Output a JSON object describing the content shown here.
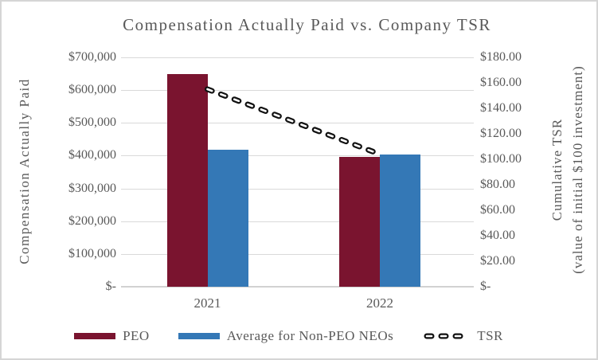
{
  "title": "Compensation Actually Paid vs. Company TSR",
  "colors": {
    "peo": "#7A142F",
    "non_peo": "#3478B6",
    "tsr": "#111111",
    "grid": "#D9D9D9",
    "axis_line": "#D2D2D2",
    "text": "#595959"
  },
  "chart_data": {
    "type": "bar",
    "subtype": "grouped-bars-with-secondary-axis-dashed-line",
    "title": "Compensation Actually Paid vs. Company TSR",
    "categories": [
      "2021",
      "2022"
    ],
    "series": [
      {
        "name": "PEO",
        "type": "bar",
        "axis": "left",
        "color_key": "peo",
        "values": [
          648000,
          395000
        ]
      },
      {
        "name": "Average for Non-PEO NEOs",
        "type": "bar",
        "axis": "left",
        "color_key": "non_peo",
        "values": [
          417000,
          404000
        ]
      },
      {
        "name": "TSR",
        "type": "dashed-line",
        "axis": "right",
        "color_key": "tsr",
        "values": [
          155,
          104
        ]
      }
    ],
    "left_axis": {
      "title": "Compensation Actually Paid",
      "range": [
        0,
        700000
      ],
      "tick_step": 100000,
      "tick_labels": [
        "$700,000",
        "$600,000",
        "$500,000",
        "$400,000",
        "$300,000",
        "$200,000",
        "$100,000",
        "$-"
      ]
    },
    "right_axis": {
      "title_line1": "Cumulative TSR",
      "title_line2": "(value of initial $100 investment)",
      "range": [
        0,
        180
      ],
      "tick_step": 20,
      "tick_labels": [
        "$180.00",
        "$160.00",
        "$140.00",
        "$120.00",
        "$100.00",
        "$80.00",
        "$60.00",
        "$40.00",
        "$20.00",
        "$-"
      ]
    },
    "grid": "horizontal",
    "legend_position": "bottom",
    "legend": [
      {
        "label": "PEO",
        "swatch": "bar",
        "color_key": "peo"
      },
      {
        "label": "Average for Non-PEO NEOs",
        "swatch": "bar",
        "color_key": "non_peo"
      },
      {
        "label": "TSR",
        "swatch": "dashed-line",
        "color_key": "tsr"
      }
    ]
  }
}
